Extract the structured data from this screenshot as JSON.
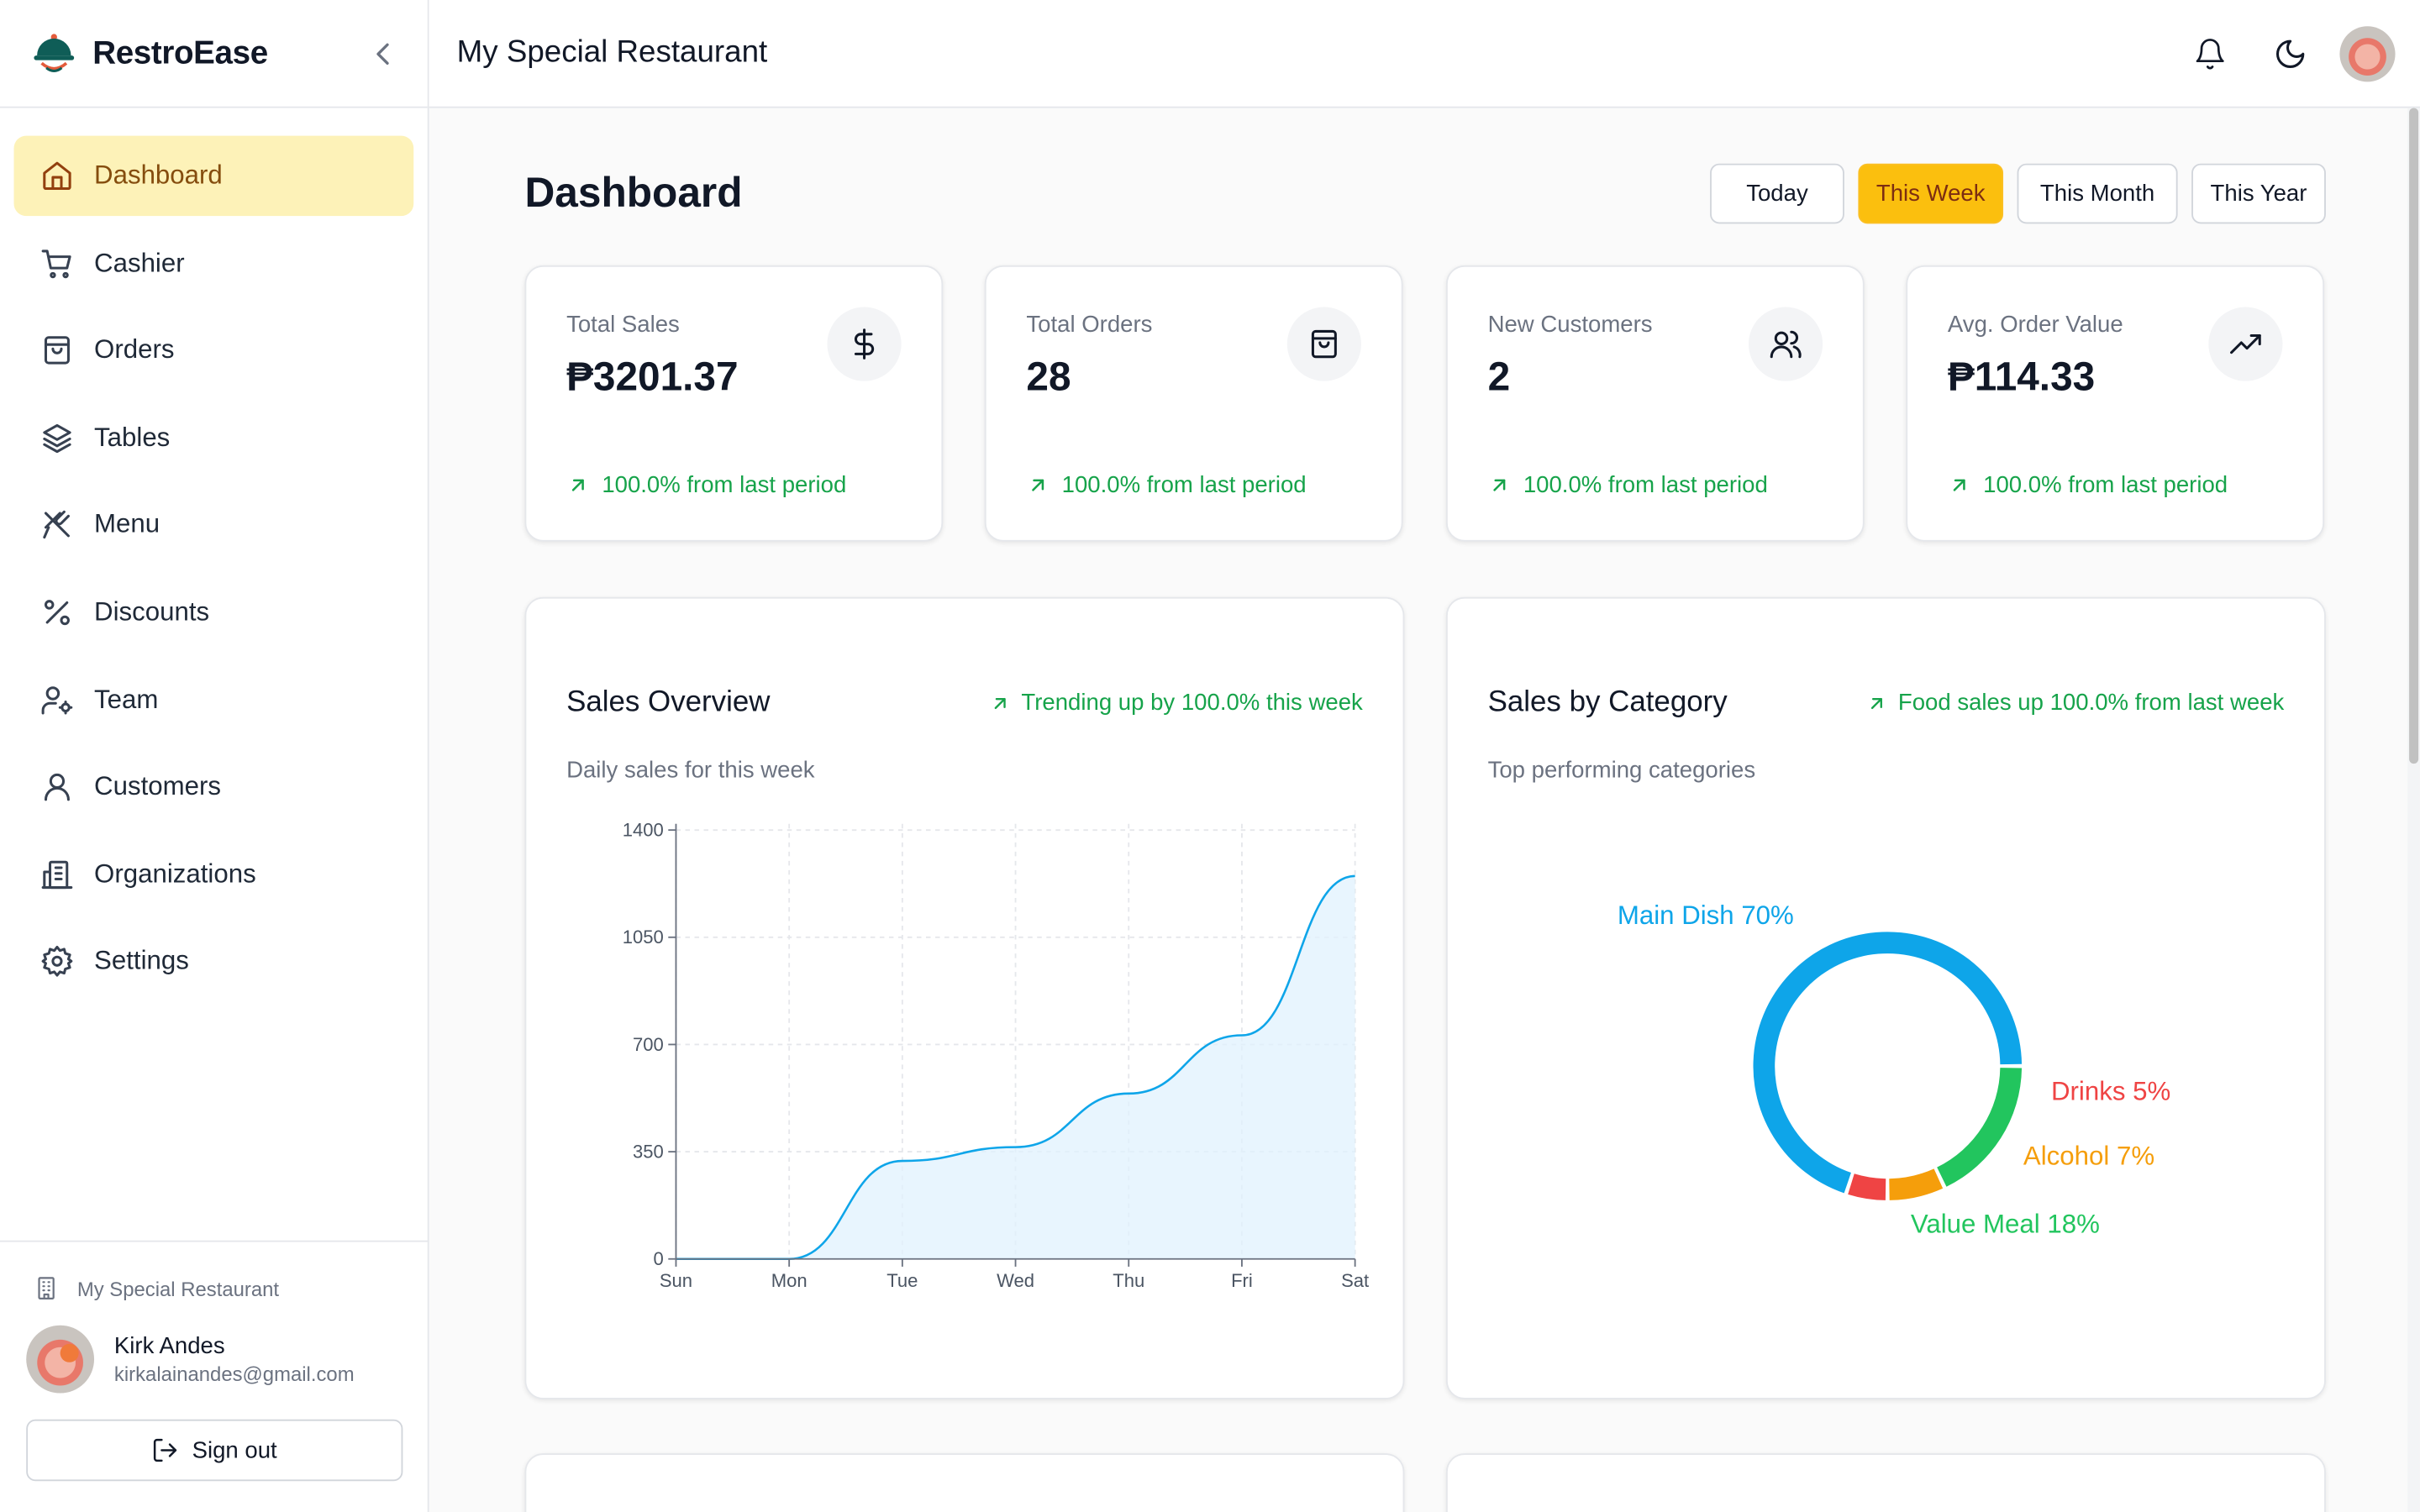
{
  "brand": {
    "name": "RestroEase",
    "logo_icon": "restaurant-cloche-icon"
  },
  "header": {
    "title": "My Special Restaurant"
  },
  "sidebar": {
    "items": [
      {
        "label": "Dashboard",
        "icon": "home-icon",
        "active": true
      },
      {
        "label": "Cashier",
        "icon": "cart-icon",
        "active": false
      },
      {
        "label": "Orders",
        "icon": "bag-icon",
        "active": false
      },
      {
        "label": "Tables",
        "icon": "layers-icon",
        "active": false
      },
      {
        "label": "Menu",
        "icon": "utensils-icon",
        "active": false
      },
      {
        "label": "Discounts",
        "icon": "percent-icon",
        "active": false
      },
      {
        "label": "Team",
        "icon": "user-cog-icon",
        "active": false
      },
      {
        "label": "Customers",
        "icon": "user-icon",
        "active": false
      },
      {
        "label": "Organizations",
        "icon": "building-icon",
        "active": false
      },
      {
        "label": "Settings",
        "icon": "gear-icon",
        "active": false
      }
    ],
    "footer": {
      "organization": "My Special Restaurant",
      "user_name": "Kirk Andes",
      "user_email": "kirkalainandes@gmail.com",
      "signout_label": "Sign out"
    }
  },
  "page": {
    "title": "Dashboard",
    "ranges": [
      {
        "label": "Today",
        "active": false
      },
      {
        "label": "This Week",
        "active": true
      },
      {
        "label": "This Month",
        "active": false
      },
      {
        "label": "This Year",
        "active": false
      }
    ]
  },
  "stats": [
    {
      "label": "Total Sales",
      "value": "₱3201.37",
      "trend": "100.0% from last period",
      "icon": "dollar-icon"
    },
    {
      "label": "Total Orders",
      "value": "28",
      "trend": "100.0% from last period",
      "icon": "shopping-bag-icon"
    },
    {
      "label": "New Customers",
      "value": "2",
      "trend": "100.0% from last period",
      "icon": "users-icon"
    },
    {
      "label": "Avg. Order Value",
      "value": "₱114.33",
      "trend": "100.0% from last period",
      "icon": "trending-up-icon"
    }
  ],
  "sales_overview": {
    "title": "Sales Overview",
    "subtitle": "Daily sales for this week",
    "trend": "Trending up by 100.0% this week"
  },
  "sales_by_category": {
    "title": "Sales by Category",
    "subtitle": "Top performing categories",
    "trend": "Food sales up 100.0% from last week"
  },
  "colors": {
    "accent": "#fbbf0e",
    "positive": "#16a34a",
    "line": "#0ea5e9",
    "area": "#e0f2fe"
  },
  "chart_data": [
    {
      "type": "area",
      "categories": [
        "Sun",
        "Mon",
        "Tue",
        "Wed",
        "Thu",
        "Fri",
        "Sat"
      ],
      "values": [
        0,
        0,
        320,
        365,
        540,
        730,
        1250
      ],
      "yticks": [
        0,
        350,
        700,
        1050,
        1400
      ],
      "ylim": [
        0,
        1400
      ],
      "grid": true,
      "color": "#0ea5e9"
    },
    {
      "type": "pie",
      "donut": true,
      "slices": [
        {
          "label": "Main Dish 70%",
          "value": 70,
          "color": "#0ea5e9"
        },
        {
          "label": "Drinks 5%",
          "value": 5,
          "color": "#ef4444"
        },
        {
          "label": "Alcohol 7%",
          "value": 7,
          "color": "#f59e0b"
        },
        {
          "label": "Value Meal 18%",
          "value": 18,
          "color": "#22c55e"
        }
      ]
    }
  ]
}
